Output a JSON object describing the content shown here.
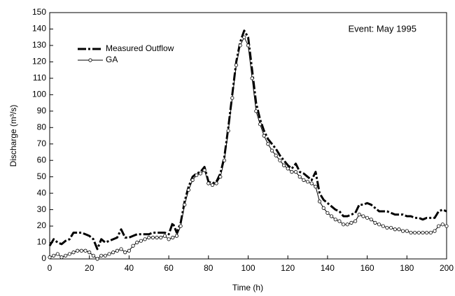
{
  "chart_data": {
    "type": "line",
    "annotation": "Event: May 1995",
    "xlabel": "Time (h)",
    "ylabel": "Discharge (m³/s)",
    "xlim": [
      0,
      200
    ],
    "ylim": [
      0,
      150
    ],
    "xticks": [
      0,
      20,
      40,
      60,
      80,
      100,
      120,
      140,
      160,
      180,
      200
    ],
    "yticks": [
      0,
      10,
      20,
      30,
      40,
      50,
      60,
      70,
      80,
      90,
      100,
      110,
      120,
      130,
      140,
      150
    ],
    "legend": "upper left",
    "x": [
      0,
      2,
      4,
      6,
      8,
      10,
      12,
      14,
      16,
      18,
      20,
      22,
      24,
      26,
      28,
      30,
      32,
      34,
      36,
      38,
      40,
      42,
      44,
      46,
      48,
      50,
      52,
      54,
      56,
      58,
      60,
      62,
      64,
      66,
      68,
      70,
      72,
      74,
      76,
      78,
      80,
      82,
      84,
      86,
      88,
      90,
      92,
      94,
      96,
      98,
      100,
      102,
      104,
      106,
      108,
      110,
      112,
      114,
      116,
      118,
      120,
      122,
      124,
      126,
      128,
      130,
      132,
      134,
      136,
      138,
      140,
      142,
      144,
      146,
      148,
      150,
      152,
      154,
      156,
      158,
      160,
      162,
      164,
      166,
      168,
      170,
      172,
      174,
      176,
      178,
      180,
      182,
      184,
      186,
      188,
      190,
      192,
      194,
      196,
      198,
      200
    ],
    "series": [
      {
        "name": "Measured Outflow",
        "color": "#000000",
        "line_style": "dash-dot",
        "values": [
          8,
          12,
          10,
          9,
          11,
          12,
          16,
          16,
          16,
          15,
          14,
          12,
          6,
          12,
          10,
          11,
          12,
          13,
          18,
          13,
          13,
          14,
          15,
          15,
          15,
          15,
          16,
          16,
          16,
          16,
          15,
          22,
          16,
          22,
          35,
          44,
          50,
          52,
          53,
          56,
          47,
          46,
          47,
          52,
          62,
          80,
          100,
          120,
          132,
          139,
          135,
          115,
          95,
          85,
          78,
          73,
          70,
          67,
          63,
          60,
          57,
          55,
          58,
          53,
          52,
          50,
          48,
          53,
          40,
          36,
          34,
          32,
          30,
          29,
          26,
          26,
          27,
          28,
          33,
          33,
          34,
          33,
          31,
          29,
          29,
          29,
          28,
          27,
          27,
          27,
          26,
          26,
          25,
          25,
          24,
          25,
          25,
          25,
          29,
          30,
          29
        ]
      },
      {
        "name": "GA",
        "color": "#000000",
        "line_style": "solid",
        "marker": "circle",
        "values": [
          1,
          2,
          3,
          1,
          2,
          3,
          4,
          5,
          5,
          5,
          4,
          2,
          0,
          2,
          2,
          3,
          4,
          5,
          6,
          4,
          5,
          8,
          10,
          11,
          12,
          13,
          13,
          13,
          13,
          14,
          12,
          13,
          14,
          20,
          33,
          42,
          48,
          51,
          52,
          54,
          46,
          45,
          46,
          50,
          60,
          78,
          98,
          118,
          130,
          135,
          130,
          110,
          90,
          82,
          75,
          70,
          66,
          63,
          60,
          57,
          55,
          53,
          53,
          50,
          48,
          47,
          46,
          44,
          35,
          31,
          28,
          26,
          24,
          23,
          21,
          21,
          22,
          23,
          27,
          26,
          25,
          24,
          22,
          21,
          20,
          19,
          19,
          18,
          18,
          17,
          17,
          16,
          16,
          16,
          16,
          16,
          16,
          17,
          20,
          21,
          20
        ]
      }
    ]
  }
}
